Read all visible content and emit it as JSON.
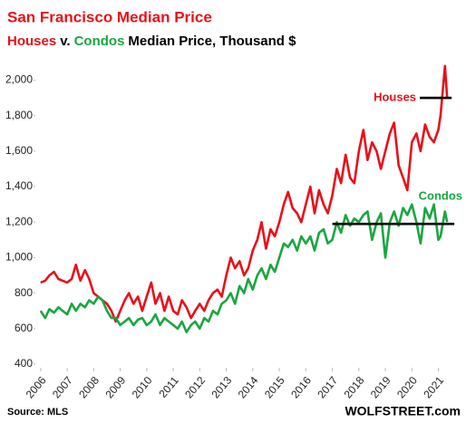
{
  "chart_data": {
    "type": "line",
    "title": "San Francisco Median Price",
    "title_color": "#e8101a",
    "subtitle_parts": [
      {
        "text": "Houses",
        "color": "#e8101a"
      },
      {
        "text": "v.",
        "color": "#000000"
      },
      {
        "text": "Condos",
        "color": "#1aa640"
      },
      {
        "text": "Median Price, Thousand $",
        "color": "#000000"
      }
    ],
    "x": [
      2006,
      2006.17,
      2006.33,
      2006.5,
      2006.67,
      2006.83,
      2007,
      2007.17,
      2007.33,
      2007.5,
      2007.67,
      2007.83,
      2008,
      2008.17,
      2008.33,
      2008.5,
      2008.67,
      2008.83,
      2009,
      2009.17,
      2009.33,
      2009.5,
      2009.67,
      2009.83,
      2010,
      2010.17,
      2010.33,
      2010.5,
      2010.67,
      2010.83,
      2011,
      2011.17,
      2011.33,
      2011.5,
      2011.67,
      2011.83,
      2012,
      2012.17,
      2012.33,
      2012.5,
      2012.67,
      2012.83,
      2013,
      2013.17,
      2013.33,
      2013.5,
      2013.67,
      2013.83,
      2014,
      2014.17,
      2014.33,
      2014.5,
      2014.67,
      2014.83,
      2015,
      2015.17,
      2015.33,
      2015.5,
      2015.67,
      2015.83,
      2016,
      2016.17,
      2016.33,
      2016.5,
      2016.67,
      2016.83,
      2017,
      2017.17,
      2017.33,
      2017.5,
      2017.67,
      2017.83,
      2018,
      2018.17,
      2018.33,
      2018.5,
      2018.67,
      2018.83,
      2019,
      2019.17,
      2019.33,
      2019.5,
      2019.67,
      2019.83,
      2020,
      2020.17,
      2020.33,
      2020.5,
      2020.67,
      2020.83,
      2021,
      2021.08,
      2021.25,
      2021.33
    ],
    "series": [
      {
        "name": "Houses",
        "color": "#e8101a",
        "values": [
          860,
          870,
          900,
          920,
          880,
          870,
          860,
          880,
          960,
          870,
          930,
          880,
          800,
          780,
          760,
          740,
          700,
          640,
          700,
          760,
          800,
          740,
          780,
          700,
          780,
          860,
          740,
          800,
          700,
          780,
          700,
          680,
          760,
          720,
          660,
          700,
          740,
          700,
          760,
          800,
          820,
          780,
          900,
          1000,
          940,
          980,
          900,
          940,
          1040,
          1100,
          1200,
          1050,
          1160,
          1120,
          1200,
          1300,
          1370,
          1280,
          1250,
          1200,
          1300,
          1400,
          1250,
          1380,
          1300,
          1250,
          1350,
          1500,
          1420,
          1580,
          1450,
          1420,
          1600,
          1720,
          1550,
          1650,
          1600,
          1500,
          1600,
          1700,
          1760,
          1520,
          1450,
          1380,
          1650,
          1700,
          1600,
          1750,
          1680,
          1650,
          1720,
          1800,
          2080,
          1900
        ]
      },
      {
        "name": "Condos",
        "color": "#1aa640",
        "values": [
          700,
          660,
          710,
          690,
          720,
          700,
          680,
          740,
          700,
          740,
          720,
          760,
          740,
          780,
          760,
          700,
          660,
          660,
          620,
          640,
          660,
          620,
          650,
          660,
          620,
          640,
          680,
          620,
          660,
          640,
          620,
          600,
          640,
          580,
          620,
          640,
          600,
          660,
          640,
          700,
          680,
          740,
          760,
          800,
          740,
          840,
          800,
          880,
          820,
          900,
          940,
          880,
          960,
          920,
          1000,
          1080,
          1060,
          1100,
          1040,
          1120,
          1080,
          1120,
          1040,
          1140,
          1160,
          1080,
          1100,
          1200,
          1140,
          1240,
          1180,
          1220,
          1200,
          1240,
          1260,
          1100,
          1200,
          1250,
          1000,
          1200,
          1260,
          1180,
          1280,
          1240,
          1300,
          1200,
          1080,
          1280,
          1220,
          1300,
          1100,
          1120,
          1260,
          1200
        ]
      }
    ],
    "reference_lines": [
      {
        "value": 1900,
        "x": [
          2020.3,
          2021.5
        ]
      },
      {
        "value": 1190,
        "x": [
          2017,
          2021.6
        ]
      }
    ],
    "xlim": [
      2005.8,
      2021.7
    ],
    "xticks": [
      2006,
      2007,
      2008,
      2009,
      2010,
      2011,
      2012,
      2013,
      2014,
      2015,
      2016,
      2017,
      2018,
      2019,
      2020,
      2021
    ],
    "ylim": [
      400,
      2120
    ],
    "yticks": [
      {
        "value": 2000,
        "label": "2,000"
      },
      {
        "value": 1800,
        "label": "1,800"
      },
      {
        "value": 1600,
        "label": "1,600"
      },
      {
        "value": 1400,
        "label": "1,400"
      },
      {
        "value": 1200,
        "label": "1,200"
      },
      {
        "value": 1000,
        "label": "1,000"
      },
      800,
      600,
      400
    ],
    "grid": false,
    "source": "Source: MLS",
    "credit": "WOLFSTREET.com"
  }
}
